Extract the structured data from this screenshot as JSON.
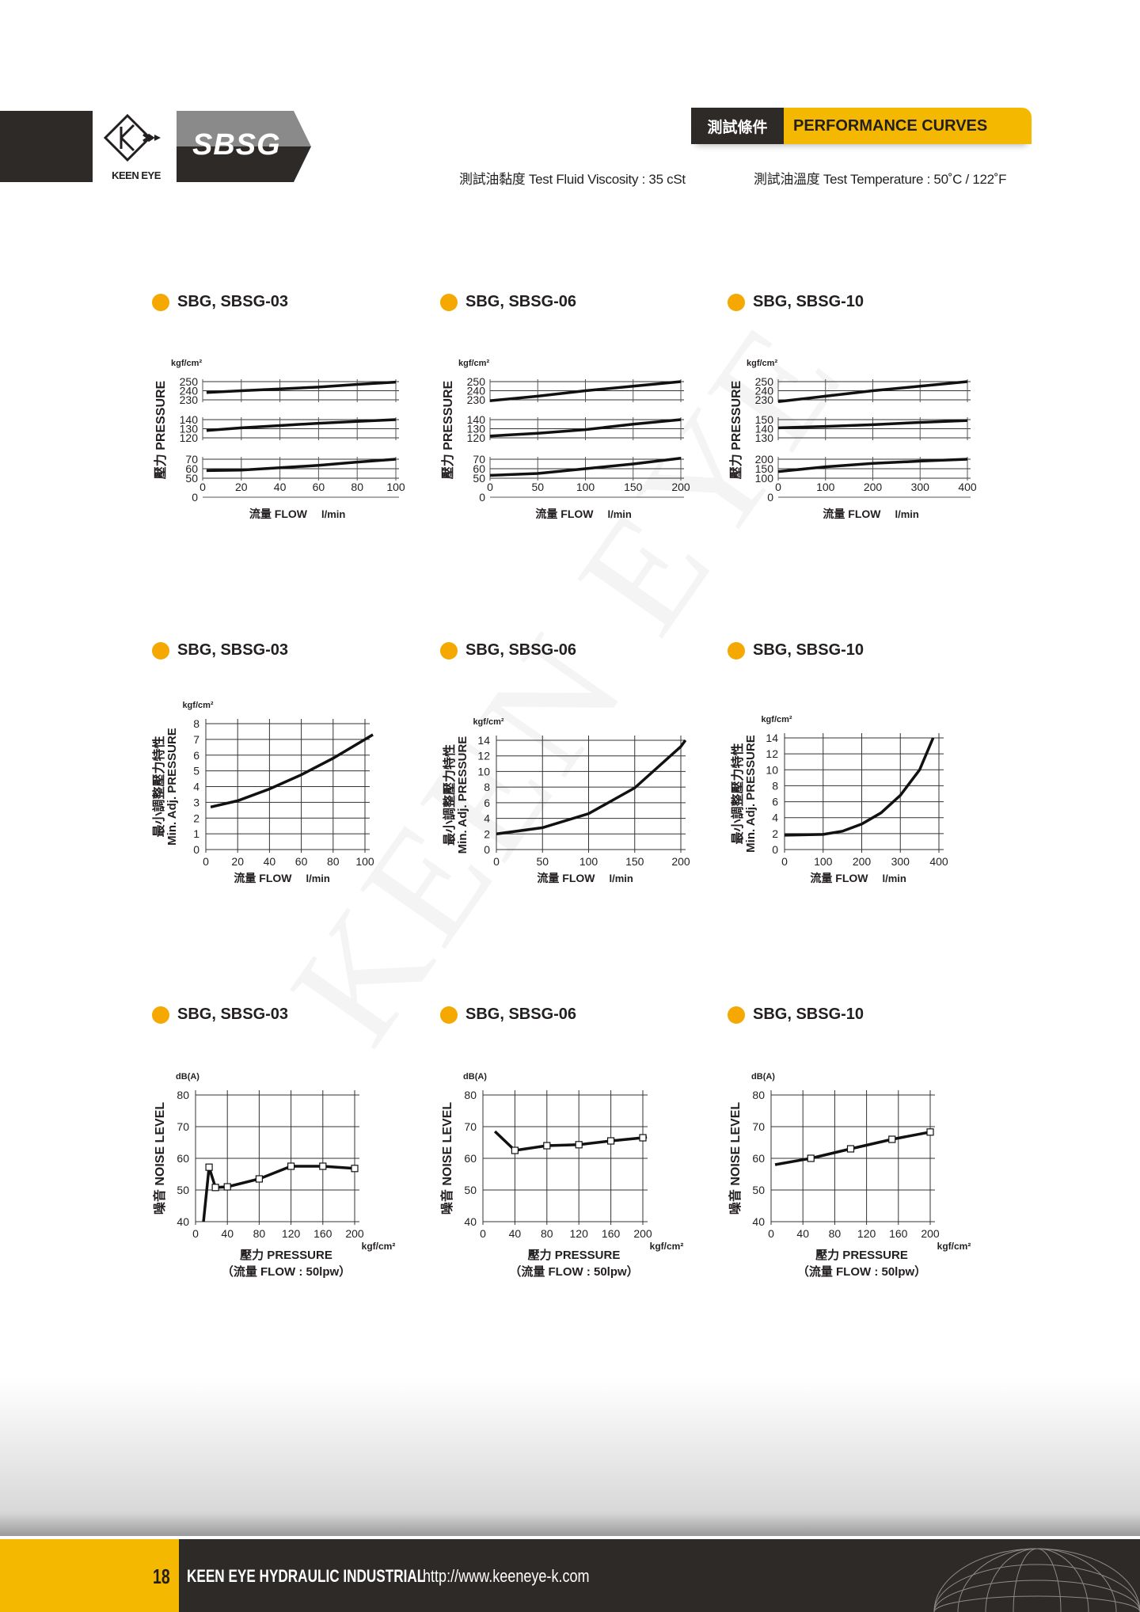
{
  "header": {
    "brand": "KEEN EYE",
    "model": "SBSG",
    "section_zh": "測試條件",
    "section_en": "PERFORMANCE CURVES",
    "viscosity": "測試油黏度  Test Fluid Viscosity : 35 cSt",
    "temperature": "測試油溫度  Test Temperature : 50˚C / 122˚F"
  },
  "watermark": "KEEN EYE",
  "footer": {
    "page": "18",
    "company": "KEEN EYE HYDRAULIC INDUSTRIAL",
    "url": "http://www.keeneye-k.com"
  },
  "colors": {
    "accent": "#f5b800",
    "dark": "#2e2a28",
    "bullet": "#f5a800"
  },
  "chart_data": [
    {
      "type": "line",
      "group": "pressure-flow",
      "title": "SBG, SBSG-03",
      "unit": "kgf/cm²",
      "ylabel": "壓力  PRESSURE",
      "xlabel": "流量 FLOW",
      "xunit": "l/min",
      "xlim": [
        0,
        100
      ],
      "xticks": [
        0,
        20,
        40,
        60,
        80,
        100
      ],
      "zero_label": "0",
      "bands": [
        {
          "ylim": [
            230,
            250
          ],
          "yticks": [
            230,
            240,
            250
          ],
          "points": [
            [
              2,
              238
            ],
            [
              20,
              240
            ],
            [
              40,
              242
            ],
            [
              60,
              244
            ],
            [
              80,
              247
            ],
            [
              100,
              249.5
            ]
          ]
        },
        {
          "ylim": [
            120,
            140
          ],
          "yticks": [
            120,
            130,
            140
          ],
          "points": [
            [
              2,
              128
            ],
            [
              20,
              131
            ],
            [
              40,
              133.5
            ],
            [
              60,
              136
            ],
            [
              80,
              138
            ],
            [
              100,
              140
            ]
          ]
        },
        {
          "ylim": [
            50,
            70
          ],
          "yticks": [
            50,
            60,
            70
          ],
          "points": [
            [
              2,
              58
            ],
            [
              20,
              58.5
            ],
            [
              40,
              61
            ],
            [
              60,
              63.5
            ],
            [
              80,
              67
            ],
            [
              100,
              70
            ]
          ]
        }
      ]
    },
    {
      "type": "line",
      "group": "pressure-flow",
      "title": "SBG, SBSG-06",
      "unit": "kgf/cm²",
      "ylabel": "壓力  PRESSURE",
      "xlabel": "流量 FLOW",
      "xunit": "l/min",
      "xlim": [
        0,
        200
      ],
      "xticks": [
        0,
        50,
        100,
        150,
        200
      ],
      "zero_label": "0",
      "bands": [
        {
          "ylim": [
            230,
            250
          ],
          "yticks": [
            230,
            240,
            250
          ],
          "points": [
            [
              0,
              229
            ],
            [
              50,
              234
            ],
            [
              100,
              240
            ],
            [
              150,
              245
            ],
            [
              200,
              250
            ]
          ]
        },
        {
          "ylim": [
            120,
            140
          ],
          "yticks": [
            120,
            130,
            140
          ],
          "points": [
            [
              0,
              122
            ],
            [
              50,
              125
            ],
            [
              100,
              129
            ],
            [
              150,
              135
            ],
            [
              200,
              140
            ]
          ]
        },
        {
          "ylim": [
            50,
            70
          ],
          "yticks": [
            50,
            60,
            70
          ],
          "points": [
            [
              0,
              53
            ],
            [
              50,
              55
            ],
            [
              100,
              60
            ],
            [
              150,
              65
            ],
            [
              200,
              71
            ]
          ]
        }
      ]
    },
    {
      "type": "line",
      "group": "pressure-flow",
      "title": "SBG, SBSG-10",
      "unit": "kgf/cm²",
      "ylabel": "壓力  PRESSURE",
      "xlabel": "流量 FLOW",
      "xunit": "l/min",
      "xlim": [
        0,
        400
      ],
      "xticks": [
        0,
        100,
        200,
        300,
        400
      ],
      "zero_label": "0",
      "bands": [
        {
          "ylim": [
            230,
            250
          ],
          "yticks": [
            230,
            240,
            250
          ],
          "points": [
            [
              0,
              228
            ],
            [
              100,
              234
            ],
            [
              200,
              240
            ],
            [
              300,
              245
            ],
            [
              400,
              250
            ]
          ]
        },
        {
          "ylim": [
            130,
            150
          ],
          "yticks": [
            130,
            140,
            150
          ],
          "points": [
            [
              0,
              141
            ],
            [
              100,
              142.5
            ],
            [
              200,
              144.5
            ],
            [
              300,
              147
            ],
            [
              400,
              149
            ]
          ]
        },
        {
          "ylim": [
            100,
            200
          ],
          "yticks": [
            100,
            150,
            200
          ],
          "points": [
            [
              0,
              135
            ],
            [
              100,
              160
            ],
            [
              200,
              178
            ],
            [
              300,
              190
            ],
            [
              400,
              200
            ]
          ]
        }
      ]
    },
    {
      "type": "line",
      "group": "min-adj",
      "title": "SBG, SBSG-03",
      "unit": "kgf/cm²",
      "ylabel": "最小調整壓力特性",
      "ylabel2": "Min. Adj. PRESSURE",
      "xlabel": "流量 FLOW",
      "xunit": "l/min",
      "xlim": [
        0,
        100
      ],
      "ylim": [
        0,
        8
      ],
      "xticks": [
        0,
        20,
        40,
        60,
        80,
        100
      ],
      "yticks": [
        0,
        1,
        2,
        3,
        4,
        5,
        6,
        7,
        8
      ],
      "points": [
        [
          3,
          2.7
        ],
        [
          20,
          3.1
        ],
        [
          40,
          3.85
        ],
        [
          60,
          4.75
        ],
        [
          80,
          5.8
        ],
        [
          100,
          7.0
        ],
        [
          105,
          7.3
        ]
      ]
    },
    {
      "type": "line",
      "group": "min-adj",
      "title": "SBG, SBSG-06",
      "unit": "kgf/cm²",
      "ylabel": "最小調整壓力特性",
      "ylabel2": "Min. Adj. PRESSURE",
      "xlabel": "流量 FLOW",
      "xunit": "l/min",
      "xlim": [
        0,
        200
      ],
      "ylim": [
        0,
        14
      ],
      "xticks": [
        0,
        50,
        100,
        150,
        200
      ],
      "yticks": [
        0,
        2,
        4,
        6,
        8,
        10,
        12,
        14
      ],
      "points": [
        [
          0,
          2
        ],
        [
          50,
          2.8
        ],
        [
          100,
          4.6
        ],
        [
          150,
          7.9
        ],
        [
          200,
          13.2
        ],
        [
          205,
          14
        ]
      ]
    },
    {
      "type": "line",
      "group": "min-adj",
      "title": "SBG, SBSG-10",
      "unit": "kgf/cm²",
      "ylabel": "最小調整壓力特性",
      "ylabel2": "Min. Adj. PRESSURE",
      "xlabel": "流量 FLOW",
      "xunit": "l/min",
      "xlim": [
        0,
        400
      ],
      "ylim": [
        0,
        14
      ],
      "xticks": [
        0,
        100,
        200,
        300,
        400
      ],
      "yticks": [
        0,
        2,
        4,
        6,
        8,
        10,
        12,
        14
      ],
      "points": [
        [
          0,
          1.8
        ],
        [
          100,
          1.9
        ],
        [
          150,
          2.3
        ],
        [
          200,
          3.2
        ],
        [
          250,
          4.6
        ],
        [
          300,
          6.8
        ],
        [
          350,
          10
        ],
        [
          385,
          14
        ]
      ]
    },
    {
      "type": "line",
      "group": "noise",
      "title": "SBG, SBSG-03",
      "unit": "dB(A)",
      "ylabel": "噪音  NOISE LEVEL",
      "xlabel": "壓力  PRESSURE",
      "xunit": "kgf/cm²",
      "note": "（流量 FLOW : 50lpw）",
      "xlim": [
        0,
        200
      ],
      "ylim": [
        40,
        80
      ],
      "xticks": [
        0,
        40,
        80,
        120,
        160,
        200
      ],
      "yticks": [
        40,
        50,
        60,
        70,
        80
      ],
      "points": [
        [
          10,
          40
        ],
        [
          17,
          57.2
        ],
        [
          25,
          50.8
        ],
        [
          40,
          51
        ],
        [
          80,
          53.5
        ],
        [
          120,
          57.5
        ],
        [
          160,
          57.5
        ],
        [
          200,
          56.8
        ]
      ],
      "markers": [
        1,
        2,
        3,
        4,
        5,
        6,
        7
      ]
    },
    {
      "type": "line",
      "group": "noise",
      "title": "SBG, SBSG-06",
      "unit": "dB(A)",
      "ylabel": "噪音  NOISE LEVEL",
      "xlabel": "壓力  PRESSURE",
      "xunit": "kgf/cm²",
      "note": "（流量 FLOW : 50lpw）",
      "xlim": [
        0,
        200
      ],
      "ylim": [
        40,
        80
      ],
      "xticks": [
        0,
        40,
        80,
        120,
        160,
        200
      ],
      "yticks": [
        40,
        50,
        60,
        70,
        80
      ],
      "points": [
        [
          15,
          68.5
        ],
        [
          40,
          62.5
        ],
        [
          80,
          64
        ],
        [
          120,
          64.3
        ],
        [
          160,
          65.5
        ],
        [
          200,
          66.5
        ],
        [
          205,
          66.7
        ]
      ],
      "markers": [
        1,
        2,
        3,
        4,
        5
      ]
    },
    {
      "type": "line",
      "group": "noise",
      "title": "SBG, SBSG-10",
      "unit": "dB(A)",
      "ylabel": "噪音  NOISE LEVEL",
      "xlabel": "壓力  PRESSURE",
      "xunit": "kgf/cm²",
      "note": "（流量 FLOW : 50lpw）",
      "xlim": [
        0,
        200
      ],
      "ylim": [
        40,
        80
      ],
      "xticks": [
        0,
        40,
        80,
        120,
        160,
        200
      ],
      "yticks": [
        40,
        50,
        60,
        70,
        80
      ],
      "points": [
        [
          5,
          58
        ],
        [
          50,
          60
        ],
        [
          100,
          63
        ],
        [
          152,
          66
        ],
        [
          200,
          68.3
        ]
      ],
      "markers": [
        1,
        2,
        3,
        4
      ]
    }
  ]
}
